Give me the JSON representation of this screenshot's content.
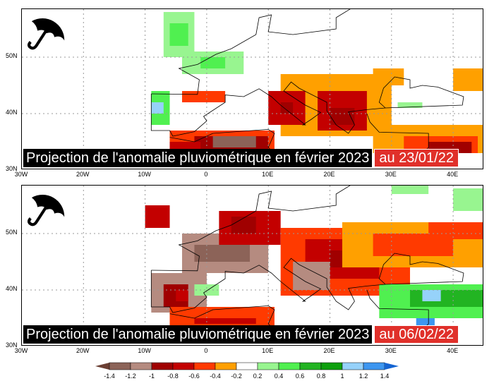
{
  "panels": [
    {
      "title": "Projection de l'anomalie pluviométrique en février 2023",
      "date": "au 23/01/22",
      "cells": [
        [
          -7,
          50,
          -2,
          58,
          0.3
        ],
        [
          -6,
          52,
          -3,
          56,
          0.5
        ],
        [
          -4,
          47,
          6,
          51,
          0.3
        ],
        [
          -1,
          48,
          3,
          50,
          0.5
        ],
        [
          -9,
          38,
          -6,
          44,
          0.5
        ],
        [
          -9,
          40,
          -7,
          42,
          1.2
        ],
        [
          -4,
          42,
          3,
          44,
          -0.5
        ],
        [
          12,
          36,
          30,
          47,
          -0.3
        ],
        [
          18,
          37,
          26,
          44,
          -0.7
        ],
        [
          20,
          38,
          24,
          41,
          -0.9
        ],
        [
          10,
          38,
          16,
          44,
          -0.7
        ],
        [
          12,
          40,
          14,
          42,
          -0.9
        ],
        [
          -6,
          33,
          11,
          37,
          -0.5
        ],
        [
          -2,
          33,
          10,
          36,
          -0.9
        ],
        [
          1,
          34,
          8,
          36,
          -1.3
        ],
        [
          -6,
          33,
          -1,
          35,
          -0.7
        ],
        [
          27,
          33,
          45,
          38,
          -0.3
        ],
        [
          32,
          33,
          44,
          36,
          -0.5
        ],
        [
          36,
          33,
          43,
          35,
          -0.9
        ],
        [
          40,
          44,
          45,
          48,
          -0.3
        ],
        [
          27,
          45,
          32,
          48,
          -0.3
        ],
        [
          31,
          41,
          35,
          42,
          0.3
        ]
      ]
    },
    {
      "title": "Projection de l'anomalie pluviométrique en février 2023",
      "date": "au 06/02/22",
      "cells": [
        [
          -4,
          43,
          10,
          50,
          -1.1
        ],
        [
          -2,
          45,
          7,
          48,
          -1.3
        ],
        [
          -9,
          36,
          0,
          43,
          -1.1
        ],
        [
          -7,
          37,
          -3,
          41,
          -0.9
        ],
        [
          -5,
          38,
          -3,
          40,
          -0.7
        ],
        [
          -10,
          51,
          -6,
          55,
          -0.7
        ],
        [
          2,
          48,
          12,
          54,
          -0.7
        ],
        [
          4,
          50,
          8,
          53,
          -0.9
        ],
        [
          12,
          39,
          33,
          51,
          -0.5
        ],
        [
          16,
          42,
          28,
          49,
          -0.7
        ],
        [
          20,
          44,
          24,
          47,
          -0.9
        ],
        [
          14,
          40,
          20,
          45,
          -1.1
        ],
        [
          22,
          44,
          45,
          52,
          -0.3
        ],
        [
          27,
          46,
          40,
          50,
          -0.5
        ],
        [
          36,
          49,
          45,
          52,
          -0.5
        ],
        [
          -6,
          33,
          11,
          37,
          -0.5
        ],
        [
          -2,
          34,
          8,
          35,
          -0.7
        ],
        [
          -2,
          39,
          2,
          41,
          0.3
        ],
        [
          28,
          35,
          45,
          41,
          0.5
        ],
        [
          33,
          37,
          45,
          40,
          0.7
        ],
        [
          35,
          38,
          38,
          40,
          1.2
        ],
        [
          34,
          33,
          37,
          35,
          1.4
        ],
        [
          30,
          57,
          36,
          59,
          0.3
        ],
        [
          40,
          54,
          45,
          58,
          0.3
        ]
      ]
    }
  ],
  "lat_labels": [
    "50N",
    "40N",
    "30N"
  ],
  "lon_labels": [
    "30W",
    "20W",
    "10W",
    "0",
    "10E",
    "20E",
    "30E",
    "40E"
  ],
  "colorbar": {
    "labels": [
      "-1.4",
      "-1.2",
      "-1",
      "-0.8",
      "-0.6",
      "-0.4",
      "-0.2",
      "0.2",
      "0.4",
      "0.6",
      "0.8",
      "1",
      "1.2",
      "1.4"
    ],
    "colors": [
      "#6b3f33",
      "#8c6358",
      "#b58b80",
      "#a00000",
      "#c30000",
      "#ff3a00",
      "#ffa000",
      "#ffffff",
      "#98f590",
      "#50f050",
      "#22b422",
      "#0ca00c",
      "#96d2fa",
      "#3c96f0",
      "#1464d2"
    ]
  }
}
